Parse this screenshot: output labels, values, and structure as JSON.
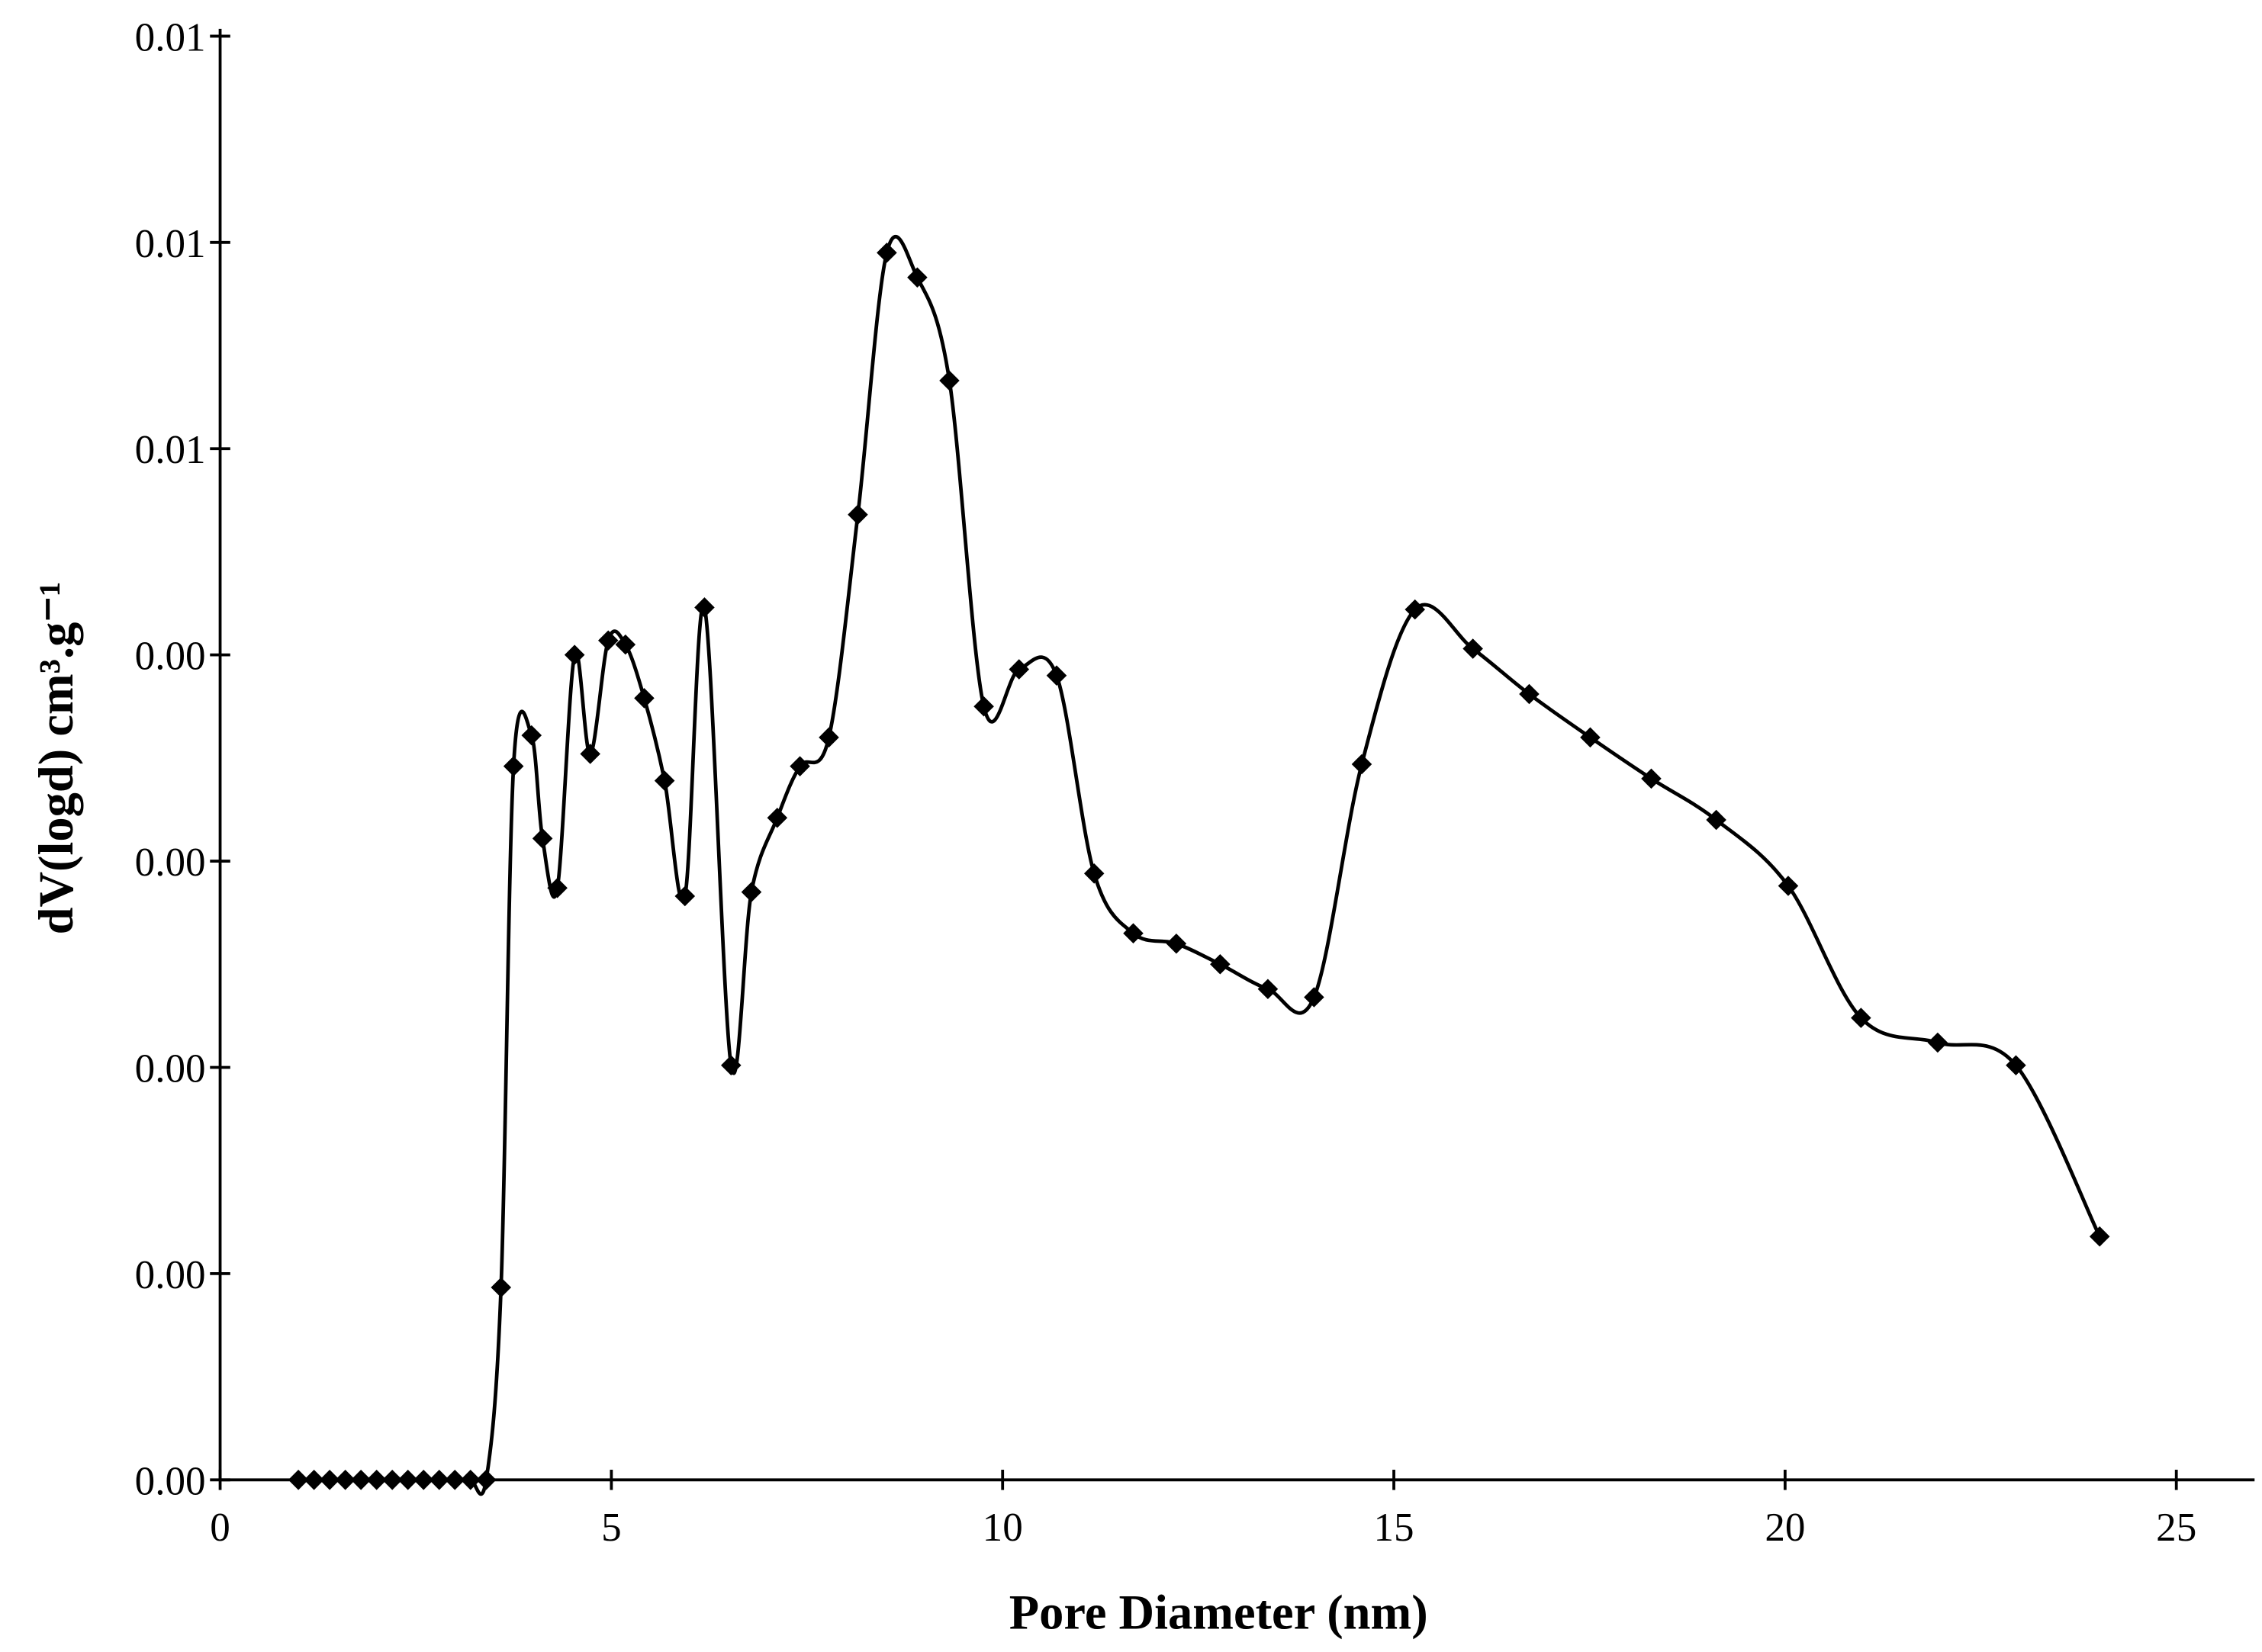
{
  "chart_data": {
    "type": "line",
    "x_label": "Pore Diameter (nm)",
    "y_label": "dV(logd) cm³.g⁻¹",
    "xlim": [
      0,
      26
    ],
    "xticks": [
      0,
      5,
      10,
      15,
      20,
      25
    ],
    "ylim": [
      0,
      0.007
    ],
    "yticks": [
      {
        "value": 0,
        "label": "0.00"
      },
      {
        "value": 0.001,
        "label": "0.00"
      },
      {
        "value": 0.002,
        "label": "0.00"
      },
      {
        "value": 0.003,
        "label": "0.00"
      },
      {
        "value": 0.004,
        "label": "0.00"
      },
      {
        "value": 0.005,
        "label": "0.01"
      },
      {
        "value": 0.006,
        "label": "0.01"
      },
      {
        "value": 0.007,
        "label": "0.01"
      }
    ],
    "series": [
      {
        "color": "#000000",
        "x": [
          1.0,
          1.2,
          1.4,
          1.6,
          1.8,
          2.0,
          2.2,
          2.4,
          2.6,
          2.8,
          3.0,
          3.2,
          3.4,
          3.59,
          3.75,
          3.98,
          4.12,
          4.31,
          4.53,
          4.73,
          4.96,
          5.18,
          5.42,
          5.68,
          5.94,
          6.19,
          6.53,
          6.79,
          7.12,
          7.41,
          7.78,
          8.15,
          8.52,
          8.91,
          9.32,
          9.76,
          10.21,
          10.69,
          11.17,
          11.67,
          12.22,
          12.78,
          13.39,
          13.98,
          14.59,
          15.27,
          16.01,
          16.73,
          17.51,
          18.29,
          19.12,
          20.04,
          20.97,
          21.95,
          22.95,
          24.02
        ],
        "values": [
          0,
          0,
          0,
          0,
          0,
          0,
          0,
          0,
          0,
          0,
          0,
          0,
          0,
          0.000933,
          0.00346,
          0.00361,
          0.00311,
          0.00287,
          0.004,
          0.00352,
          0.00407,
          0.00405,
          0.00379,
          0.00339,
          0.00283,
          0.00423,
          0.00201,
          0.00285,
          0.00321,
          0.00346,
          0.0036,
          0.00468,
          0.00595,
          0.00583,
          0.00533,
          0.00375,
          0.00393,
          0.0039,
          0.00294,
          0.00265,
          0.0026,
          0.0025,
          0.00238,
          0.00234,
          0.00347,
          0.00422,
          0.00403,
          0.00381,
          0.0036,
          0.0034,
          0.0032,
          0.00288,
          0.00224,
          0.00212,
          0.00201,
          0.00118
        ]
      }
    ]
  }
}
